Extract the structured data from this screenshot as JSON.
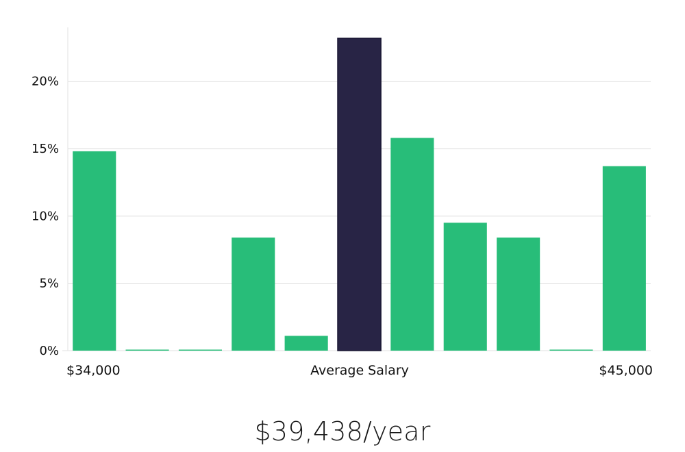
{
  "chart_data": {
    "type": "bar",
    "categories": [
      "1",
      "2",
      "3",
      "4",
      "5",
      "6",
      "7",
      "8",
      "9",
      "10",
      "11"
    ],
    "values": [
      14.8,
      0,
      0,
      8.4,
      1.1,
      23.2,
      15.8,
      9.5,
      8.4,
      0,
      13.7
    ],
    "highlight_index": 5,
    "ylim": [
      0,
      24
    ],
    "y_ticks": [
      "0%",
      "5%",
      "10%",
      "15%",
      "20%"
    ],
    "y_tick_values": [
      0,
      5,
      10,
      15,
      20
    ],
    "x_labels": {
      "left": "$34,000",
      "center": "Average Salary",
      "right": "$45,000"
    },
    "grid": true,
    "colors": {
      "bar": "#28bd79",
      "highlight": "#282445",
      "grid": "#dcdcdc",
      "axis": "#e2e2e2"
    }
  },
  "salary_display": "$39,438/year"
}
